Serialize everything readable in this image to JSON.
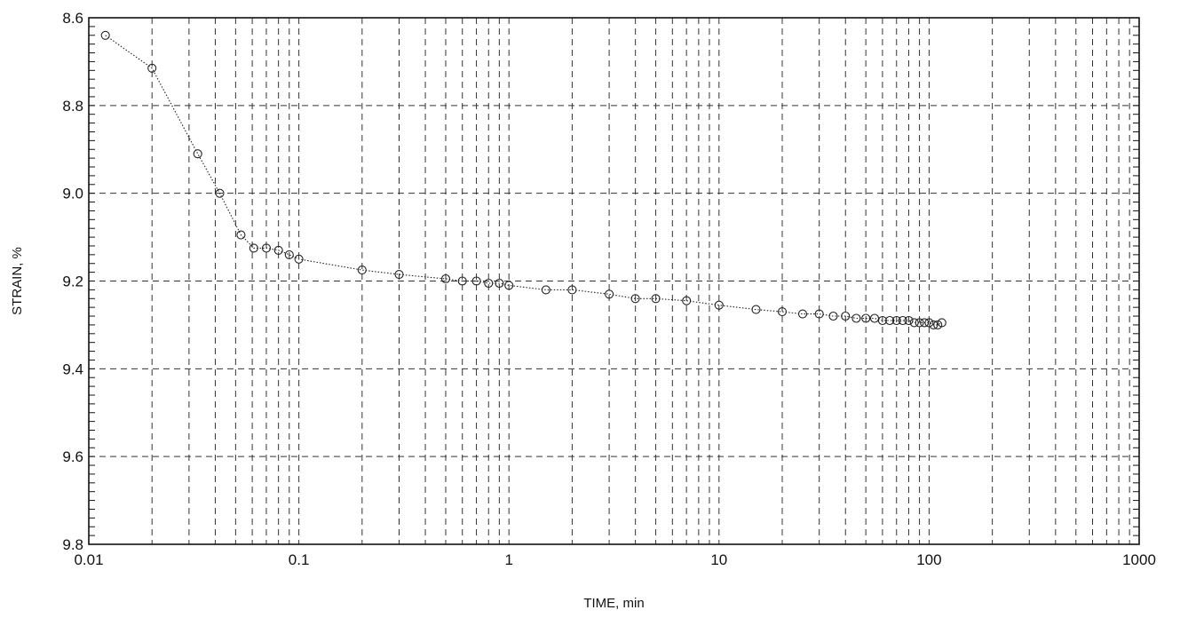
{
  "chart_data": {
    "type": "scatter",
    "title": "",
    "xlabel": "TIME, min",
    "ylabel": "STRAIN, %",
    "x_scale": "log",
    "y_axis_inverted": true,
    "xlim": [
      0.01,
      1000
    ],
    "ylim": [
      8.6,
      9.8
    ],
    "grid": true,
    "x_ticks": [
      "0.01",
      "0.1",
      "1",
      "10",
      "100",
      "1000"
    ],
    "y_ticks": [
      "8.6",
      "8.8",
      "9.0",
      "9.2",
      "9.4",
      "9.6",
      "9.8"
    ],
    "marker": "circle",
    "line_style": "dotted",
    "series": [
      {
        "x": [
          0.012,
          0.02,
          0.033,
          0.042,
          0.053,
          0.061,
          0.07,
          0.08,
          0.09,
          0.1,
          0.2,
          0.3,
          0.5,
          0.6,
          0.7,
          0.8,
          0.9,
          1.0,
          1.5,
          2,
          3,
          4,
          5,
          7,
          10,
          15,
          20,
          25,
          30,
          35,
          40,
          45,
          50,
          55,
          60,
          65,
          70,
          75,
          80,
          85,
          90,
          95,
          100,
          105,
          110,
          115
        ],
        "y": [
          8.64,
          8.715,
          8.91,
          9.0,
          9.095,
          9.125,
          9.125,
          9.13,
          9.14,
          9.15,
          9.175,
          9.185,
          9.195,
          9.2,
          9.2,
          9.205,
          9.205,
          9.21,
          9.22,
          9.22,
          9.23,
          9.24,
          9.24,
          9.245,
          9.255,
          9.265,
          9.27,
          9.275,
          9.275,
          9.28,
          9.28,
          9.285,
          9.285,
          9.285,
          9.29,
          9.29,
          9.29,
          9.29,
          9.29,
          9.295,
          9.295,
          9.295,
          9.295,
          9.3,
          9.3,
          9.295
        ]
      }
    ]
  }
}
